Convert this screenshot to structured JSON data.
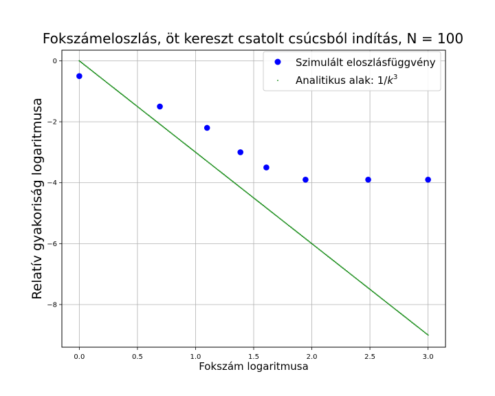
{
  "chart_data": {
    "type": "scatter",
    "title": "Fokszámeloszlás, öt kereszt csatolt csúcsból indítás, N = 100",
    "xlabel": "Fokszám logaritmusa",
    "ylabel": "Relatív gyakoriság logaritmusa",
    "xlim": [
      -0.15,
      3.15
    ],
    "ylim": [
      -9.4,
      0.35
    ],
    "x_ticks": [
      0.0,
      0.5,
      1.0,
      1.5,
      2.0,
      2.5,
      3.0
    ],
    "x_tick_labels": [
      "0.0",
      "0.5",
      "1.0",
      "1.5",
      "2.0",
      "2.5",
      "3.0"
    ],
    "y_ticks": [
      0,
      -2,
      -4,
      -6,
      -8
    ],
    "y_tick_labels": [
      "0",
      "−2",
      "−4",
      "−6",
      "−8"
    ],
    "grid": true,
    "legend_position": "top-right",
    "series": [
      {
        "name": "Szimulált eloszlásfüggvény",
        "kind": "markers",
        "color": "#0000ff",
        "x": [
          0.0,
          0.693,
          1.099,
          1.386,
          1.609,
          1.946,
          2.485,
          3.0
        ],
        "y": [
          -0.5,
          -1.5,
          -2.2,
          -3.0,
          -3.5,
          -3.9,
          -3.9,
          -3.9
        ]
      },
      {
        "name": "Analitikus alak: 1/k³",
        "legend_prefix": "Analitikus alak: 1/",
        "legend_base": "k",
        "legend_exponent": "3",
        "kind": "dotted-line",
        "color": "#008000",
        "slope": -3,
        "intercept": 0,
        "x": [
          0.0,
          3.0
        ],
        "y": [
          0.0,
          -9.0
        ]
      }
    ]
  }
}
